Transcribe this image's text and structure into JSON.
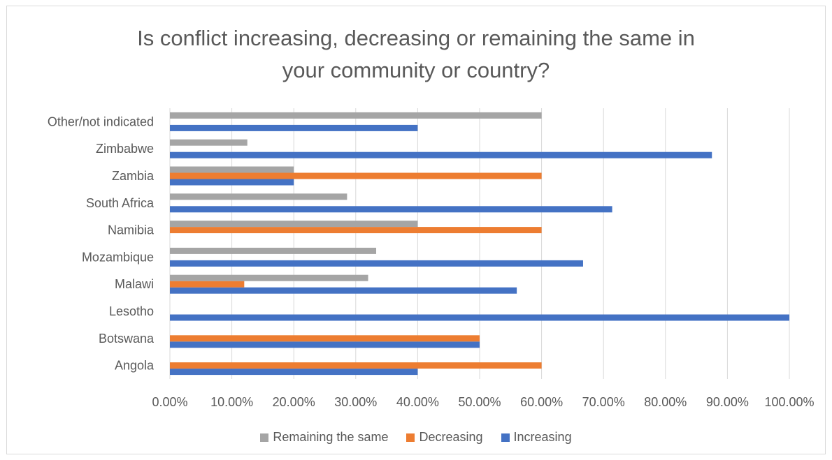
{
  "chart_data": {
    "type": "bar",
    "orientation": "horizontal",
    "title": "Is conflict increasing, decreasing or remaining the same in\nyour community or country?",
    "categories": [
      "Angola",
      "Botswana",
      "Lesotho",
      "Malawi",
      "Mozambique",
      "Namibia",
      "South Africa",
      "Zambia",
      "Zimbabwe",
      "Other/not indicated"
    ],
    "series": [
      {
        "name": "Increasing",
        "color": "#4472c4",
        "values": [
          0.4,
          0.5,
          1.0,
          0.56,
          0.667,
          0,
          0.714,
          0.2,
          0.875,
          0.4
        ]
      },
      {
        "name": "Decreasing",
        "color": "#ed7d31",
        "values": [
          0.6,
          0.5,
          0,
          0.12,
          0,
          0.6,
          0,
          0.6,
          0,
          0
        ]
      },
      {
        "name": "Remaining the same",
        "color": "#a5a5a5",
        "values": [
          0,
          0,
          0,
          0.32,
          0.333,
          0.4,
          0.286,
          0.2,
          0.125,
          0.6
        ]
      }
    ],
    "xlim": [
      0,
      1
    ],
    "xticks": [
      "0.00%",
      "10.00%",
      "20.00%",
      "30.00%",
      "40.00%",
      "50.00%",
      "60.00%",
      "70.00%",
      "80.00%",
      "90.00%",
      "100.00%"
    ],
    "grid": true,
    "legend_position": "bottom",
    "legend_order": [
      "Remaining the same",
      "Decreasing",
      "Increasing"
    ]
  }
}
